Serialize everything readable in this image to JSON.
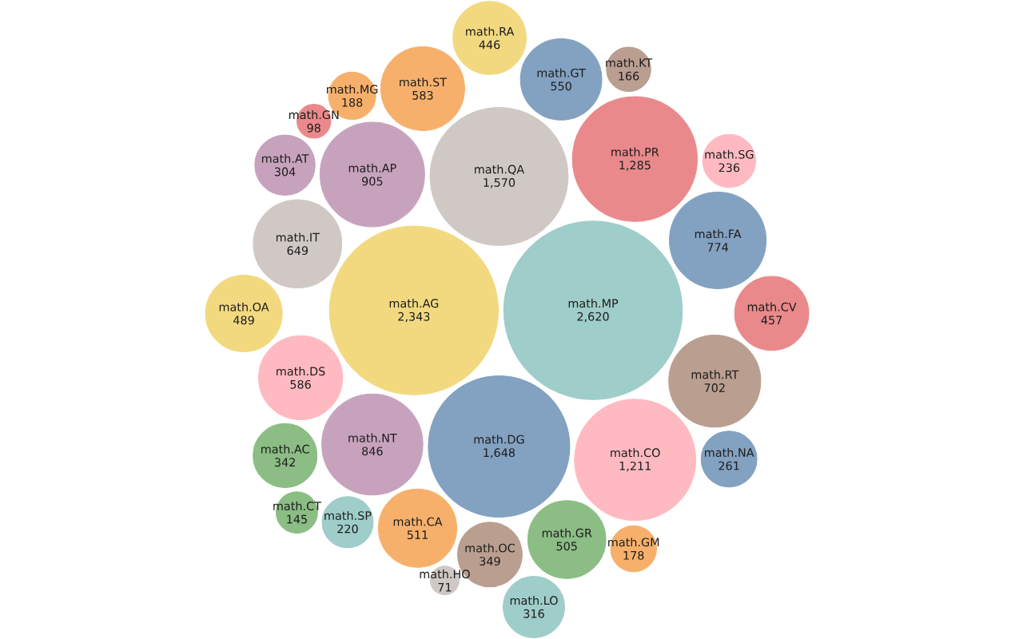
{
  "chart_data": {
    "type": "other",
    "categories": [
      "math.MP",
      "math.AG",
      "math.DG",
      "math.QA",
      "math.PR",
      "math.CO",
      "math.AP",
      "math.NT",
      "math.FA",
      "math.RT",
      "math.IT",
      "math.DS",
      "math.ST",
      "math.GT",
      "math.CA",
      "math.GR",
      "math.OA",
      "math.CV",
      "math.RA",
      "math.OC",
      "math.AC",
      "math.LO",
      "math.AT",
      "math.NA",
      "math.SG",
      "math.SP",
      "math.MG",
      "math.GM",
      "math.KT",
      "math.CT",
      "math.GN",
      "math.HO"
    ],
    "values": [
      2620,
      2343,
      1648,
      1570,
      1285,
      1211,
      905,
      846,
      774,
      702,
      649,
      586,
      583,
      550,
      511,
      505,
      489,
      457,
      446,
      349,
      342,
      316,
      304,
      261,
      236,
      220,
      188,
      178,
      166,
      145,
      98,
      71
    ],
    "value_labels": [
      "2,620",
      "2,343",
      "1,648",
      "1,570",
      "1,285",
      "1,211",
      "905",
      "846",
      "774",
      "702",
      "649",
      "586",
      "583",
      "550",
      "511",
      "505",
      "489",
      "457",
      "446",
      "349",
      "342",
      "316",
      "304",
      "261",
      "236",
      "220",
      "188",
      "178",
      "166",
      "145",
      "98",
      "71"
    ],
    "colors": [
      "#9fcdc9",
      "#f2d980",
      "#83a1c1",
      "#cfc8c4",
      "#ea898b",
      "#ffbac1",
      "#c7a2bd",
      "#c7a2bd",
      "#83a1c1",
      "#ba9e8f",
      "#cfc8c4",
      "#ffbac1",
      "#f6b06b",
      "#83a1c1",
      "#f6b06b",
      "#8bbd84",
      "#f2d980",
      "#ea898b",
      "#f2d980",
      "#ba9e8f",
      "#8bbd84",
      "#9fcdc9",
      "#c7a2bd",
      "#83a1c1",
      "#ffbac1",
      "#9fcdc9",
      "#f6b06b",
      "#f6b06b",
      "#ba9e8f",
      "#8bbd84",
      "#ea898b",
      "#cfc8c4"
    ]
  }
}
